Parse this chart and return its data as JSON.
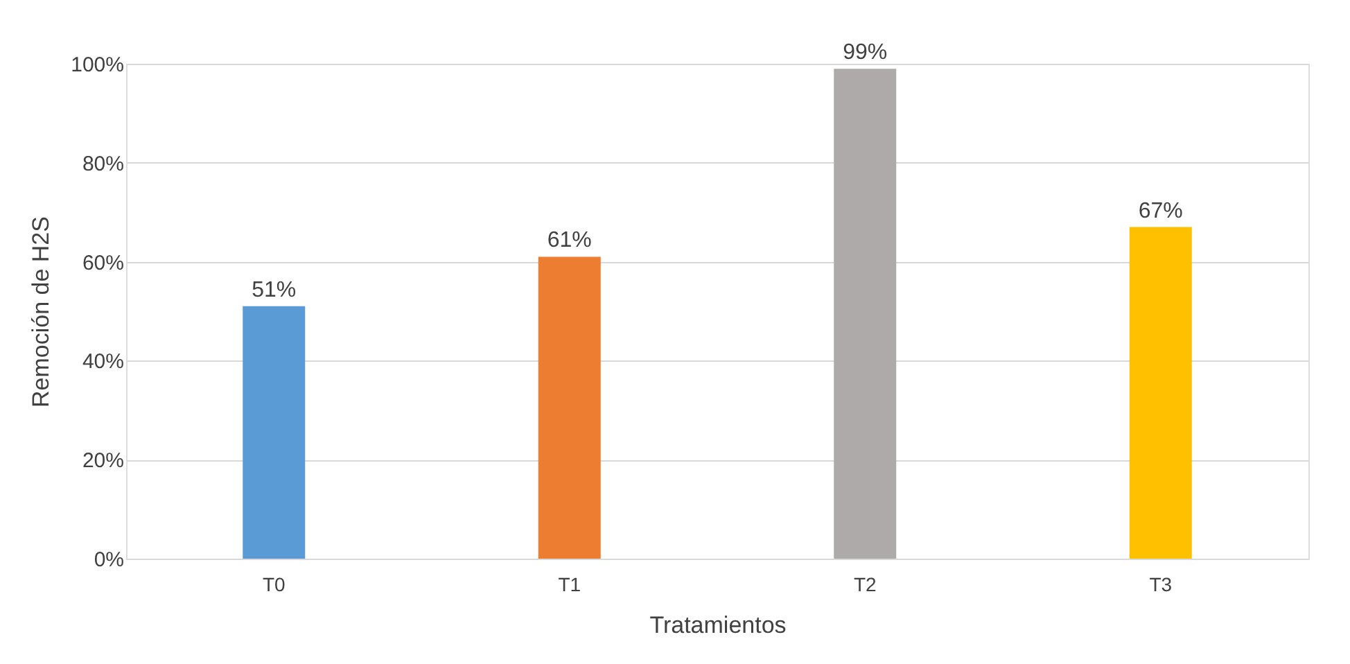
{
  "chart_data": {
    "type": "bar",
    "xlabel": "Tratamientos",
    "ylabel": "Remoción de H2S",
    "categories": [
      "T0",
      "T1",
      "T2",
      "T3"
    ],
    "values": [
      51,
      61,
      99,
      67
    ],
    "colors": [
      "#5b9bd5",
      "#ed7d31",
      "#aeaaaa",
      "#ffc000"
    ],
    "value_labels": [
      "51%",
      "61%",
      "99%",
      "67%"
    ],
    "ylim": [
      0,
      100
    ],
    "yticks": [
      {
        "value": 0,
        "label": "0%"
      },
      {
        "value": 20,
        "label": "20%"
      },
      {
        "value": 40,
        "label": "40%"
      },
      {
        "value": 60,
        "label": "60%"
      },
      {
        "value": 80,
        "label": "80%"
      },
      {
        "value": 100,
        "label": "100%"
      }
    ],
    "grid": "y"
  }
}
